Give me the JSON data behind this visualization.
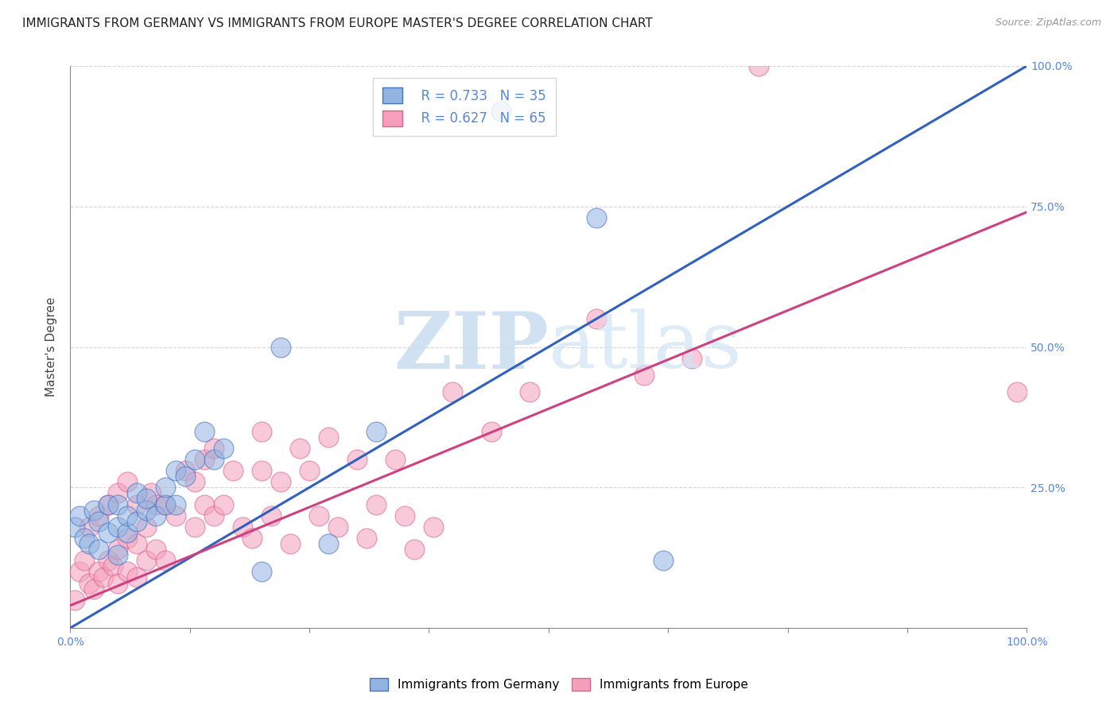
{
  "title": "IMMIGRANTS FROM GERMANY VS IMMIGRANTS FROM EUROPE MASTER'S DEGREE CORRELATION CHART",
  "source": "Source: ZipAtlas.com",
  "ylabel": "Master's Degree",
  "xlim": [
    0,
    1
  ],
  "ylim": [
    0,
    1
  ],
  "xtick_positions": [
    0.0,
    0.125,
    0.25,
    0.375,
    0.5,
    0.625,
    0.75,
    0.875,
    1.0
  ],
  "xticklabels_special": {
    "0.0": "0.0%",
    "1.0": "100.0%"
  },
  "right_yticks": [
    0.0,
    0.25,
    0.5,
    0.75,
    1.0
  ],
  "right_yticklabels": [
    "",
    "25.0%",
    "50.0%",
    "75.0%",
    "100.0%"
  ],
  "blue_r": 0.733,
  "blue_n": 35,
  "pink_r": 0.627,
  "pink_n": 65,
  "blue_fill": "#92B4E0",
  "pink_fill": "#F4A0BB",
  "blue_edge": "#4472C4",
  "pink_edge": "#E06090",
  "blue_line_color": "#3060C0",
  "pink_line_color": "#D04080",
  "watermark_zip_color": "#C8DCF0",
  "watermark_atlas_color": "#D0E4F4",
  "blue_scatter_x": [
    0.005,
    0.01,
    0.015,
    0.02,
    0.025,
    0.03,
    0.03,
    0.04,
    0.04,
    0.05,
    0.05,
    0.05,
    0.06,
    0.06,
    0.07,
    0.07,
    0.08,
    0.08,
    0.09,
    0.1,
    0.1,
    0.11,
    0.11,
    0.12,
    0.13,
    0.14,
    0.15,
    0.16,
    0.2,
    0.22,
    0.27,
    0.32,
    0.45,
    0.55,
    0.62
  ],
  "blue_scatter_y": [
    0.18,
    0.2,
    0.16,
    0.15,
    0.21,
    0.14,
    0.19,
    0.17,
    0.22,
    0.13,
    0.18,
    0.22,
    0.17,
    0.2,
    0.19,
    0.24,
    0.21,
    0.23,
    0.2,
    0.22,
    0.25,
    0.28,
    0.22,
    0.27,
    0.3,
    0.35,
    0.3,
    0.32,
    0.1,
    0.5,
    0.15,
    0.35,
    0.92,
    0.73,
    0.12
  ],
  "pink_scatter_x": [
    0.005,
    0.01,
    0.015,
    0.02,
    0.02,
    0.025,
    0.03,
    0.03,
    0.035,
    0.04,
    0.04,
    0.045,
    0.05,
    0.05,
    0.05,
    0.06,
    0.06,
    0.06,
    0.07,
    0.07,
    0.07,
    0.08,
    0.08,
    0.085,
    0.09,
    0.09,
    0.1,
    0.1,
    0.11,
    0.12,
    0.13,
    0.13,
    0.14,
    0.14,
    0.15,
    0.15,
    0.16,
    0.17,
    0.18,
    0.19,
    0.2,
    0.2,
    0.21,
    0.22,
    0.23,
    0.24,
    0.25,
    0.26,
    0.27,
    0.28,
    0.3,
    0.31,
    0.32,
    0.34,
    0.35,
    0.36,
    0.38,
    0.4,
    0.44,
    0.48,
    0.55,
    0.6,
    0.65,
    0.72,
    0.99
  ],
  "pink_scatter_y": [
    0.05,
    0.1,
    0.12,
    0.08,
    0.18,
    0.07,
    0.1,
    0.2,
    0.09,
    0.12,
    0.22,
    0.11,
    0.08,
    0.14,
    0.24,
    0.1,
    0.16,
    0.26,
    0.09,
    0.15,
    0.22,
    0.12,
    0.18,
    0.24,
    0.14,
    0.22,
    0.12,
    0.22,
    0.2,
    0.28,
    0.18,
    0.26,
    0.22,
    0.3,
    0.2,
    0.32,
    0.22,
    0.28,
    0.18,
    0.16,
    0.28,
    0.35,
    0.2,
    0.26,
    0.15,
    0.32,
    0.28,
    0.2,
    0.34,
    0.18,
    0.3,
    0.16,
    0.22,
    0.3,
    0.2,
    0.14,
    0.18,
    0.42,
    0.35,
    0.42,
    0.55,
    0.45,
    0.48,
    1.0,
    0.42
  ],
  "blue_line_x": [
    0.0,
    1.0
  ],
  "blue_line_y": [
    0.0,
    1.0
  ],
  "pink_line_x": [
    0.0,
    1.0
  ],
  "pink_line_y": [
    0.04,
    0.74
  ],
  "title_fontsize": 11,
  "axis_tick_fontsize": 10,
  "ylabel_fontsize": 11,
  "legend_fontsize": 12,
  "background_color": "#FFFFFF",
  "grid_color": "#BBBBBB"
}
